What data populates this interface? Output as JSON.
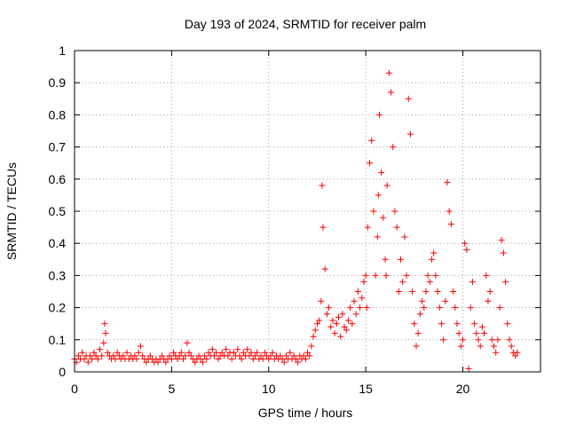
{
  "chart_data": {
    "type": "scatter",
    "title": "Day 193 of 2024, SRMTID for receiver palm",
    "xlabel": "GPS time / hours",
    "ylabel": "SRMTID / TECUs",
    "xlim": [
      0,
      24
    ],
    "ylim": [
      0,
      1
    ],
    "xticks": [
      0,
      5,
      10,
      15,
      20
    ],
    "xtick_labels": [
      "0",
      "5",
      "10",
      "15",
      "20"
    ],
    "yticks": [
      0,
      0.1,
      0.2,
      0.3,
      0.4,
      0.5,
      0.6,
      0.7,
      0.8,
      0.9,
      1
    ],
    "ytick_labels": [
      "0",
      "0.1",
      "0.2",
      "0.3",
      "0.4",
      "0.5",
      "0.6",
      "0.7",
      "0.8",
      "0.9",
      "1"
    ],
    "grid": true,
    "marker": "+",
    "marker_color": "#ff0000",
    "series": [
      {
        "name": "SRMTID",
        "x": [
          0.0,
          0.1,
          0.2,
          0.3,
          0.4,
          0.5,
          0.6,
          0.7,
          0.8,
          0.9,
          1.0,
          1.1,
          1.2,
          1.3,
          1.4,
          1.5,
          1.55,
          1.6,
          1.7,
          1.8,
          1.9,
          2.0,
          2.1,
          2.2,
          2.3,
          2.4,
          2.5,
          2.6,
          2.7,
          2.8,
          2.9,
          3.0,
          3.1,
          3.2,
          3.3,
          3.4,
          3.5,
          3.6,
          3.7,
          3.8,
          3.9,
          4.0,
          4.1,
          4.2,
          4.3,
          4.4,
          4.5,
          4.6,
          4.7,
          4.8,
          4.9,
          5.0,
          5.1,
          5.2,
          5.3,
          5.4,
          5.5,
          5.6,
          5.7,
          5.8,
          5.9,
          6.0,
          6.1,
          6.2,
          6.3,
          6.4,
          6.5,
          6.6,
          6.7,
          6.8,
          6.9,
          7.0,
          7.1,
          7.2,
          7.3,
          7.4,
          7.5,
          7.6,
          7.7,
          7.8,
          7.9,
          8.0,
          8.1,
          8.2,
          8.3,
          8.4,
          8.5,
          8.6,
          8.7,
          8.8,
          8.9,
          9.0,
          9.1,
          9.2,
          9.3,
          9.4,
          9.5,
          9.6,
          9.7,
          9.8,
          9.9,
          10.0,
          10.1,
          10.2,
          10.3,
          10.4,
          10.5,
          10.6,
          10.7,
          10.8,
          10.9,
          11.0,
          11.1,
          11.2,
          11.3,
          11.4,
          11.5,
          11.6,
          11.7,
          11.8,
          11.9,
          12.0,
          12.1,
          12.2,
          12.3,
          12.4,
          12.5,
          12.6,
          12.7,
          12.75,
          12.8,
          12.9,
          13.0,
          13.1,
          13.2,
          13.3,
          13.4,
          13.5,
          13.6,
          13.7,
          13.8,
          13.9,
          14.0,
          14.1,
          14.2,
          14.3,
          14.4,
          14.5,
          14.6,
          14.7,
          14.8,
          14.9,
          15.0,
          15.05,
          15.1,
          15.2,
          15.3,
          15.4,
          15.5,
          15.6,
          15.65,
          15.7,
          15.8,
          15.9,
          16.0,
          16.05,
          16.1,
          16.2,
          16.3,
          16.4,
          16.5,
          16.6,
          16.7,
          16.8,
          16.9,
          17.0,
          17.1,
          17.2,
          17.3,
          17.4,
          17.5,
          17.6,
          17.7,
          17.8,
          17.9,
          18.0,
          18.1,
          18.2,
          18.3,
          18.4,
          18.5,
          18.6,
          18.7,
          18.8,
          18.9,
          19.0,
          19.1,
          19.2,
          19.3,
          19.4,
          19.5,
          19.6,
          19.7,
          19.8,
          19.9,
          20.0,
          20.1,
          20.2,
          20.3,
          20.4,
          20.5,
          20.6,
          20.7,
          20.8,
          20.9,
          21.0,
          21.1,
          21.2,
          21.3,
          21.4,
          21.5,
          21.6,
          21.7,
          21.8,
          21.9,
          22.0,
          22.1,
          22.2,
          22.3,
          22.4,
          22.5,
          22.6,
          22.7,
          22.8
        ],
        "y": [
          0.04,
          0.03,
          0.05,
          0.04,
          0.06,
          0.04,
          0.05,
          0.03,
          0.05,
          0.04,
          0.06,
          0.05,
          0.04,
          0.07,
          0.05,
          0.09,
          0.15,
          0.12,
          0.06,
          0.05,
          0.04,
          0.05,
          0.04,
          0.06,
          0.05,
          0.04,
          0.05,
          0.04,
          0.06,
          0.04,
          0.05,
          0.04,
          0.05,
          0.04,
          0.06,
          0.08,
          0.05,
          0.04,
          0.03,
          0.04,
          0.05,
          0.04,
          0.03,
          0.04,
          0.03,
          0.04,
          0.05,
          0.04,
          0.03,
          0.04,
          0.05,
          0.04,
          0.06,
          0.05,
          0.04,
          0.05,
          0.06,
          0.04,
          0.05,
          0.09,
          0.06,
          0.05,
          0.04,
          0.03,
          0.04,
          0.05,
          0.04,
          0.03,
          0.05,
          0.04,
          0.06,
          0.05,
          0.07,
          0.05,
          0.06,
          0.04,
          0.05,
          0.06,
          0.05,
          0.07,
          0.05,
          0.06,
          0.04,
          0.06,
          0.05,
          0.07,
          0.05,
          0.04,
          0.06,
          0.05,
          0.07,
          0.05,
          0.06,
          0.04,
          0.05,
          0.06,
          0.04,
          0.05,
          0.04,
          0.06,
          0.05,
          0.04,
          0.05,
          0.06,
          0.04,
          0.05,
          0.04,
          0.05,
          0.04,
          0.03,
          0.05,
          0.04,
          0.06,
          0.04,
          0.05,
          0.04,
          0.03,
          0.05,
          0.04,
          0.05,
          0.04,
          0.06,
          0.05,
          0.08,
          0.11,
          0.13,
          0.15,
          0.16,
          0.22,
          0.58,
          0.45,
          0.32,
          0.18,
          0.2,
          0.14,
          0.16,
          0.12,
          0.15,
          0.17,
          0.11,
          0.18,
          0.14,
          0.13,
          0.16,
          0.2,
          0.15,
          0.22,
          0.18,
          0.25,
          0.2,
          0.23,
          0.28,
          0.3,
          0.2,
          0.45,
          0.65,
          0.72,
          0.5,
          0.3,
          0.42,
          0.55,
          0.8,
          0.62,
          0.48,
          0.35,
          0.3,
          0.58,
          0.93,
          0.87,
          0.7,
          0.5,
          0.45,
          0.25,
          0.35,
          0.28,
          0.42,
          0.3,
          0.85,
          0.74,
          0.25,
          0.15,
          0.08,
          0.12,
          0.18,
          0.22,
          0.2,
          0.25,
          0.3,
          0.28,
          0.35,
          0.37,
          0.3,
          0.25,
          0.2,
          0.15,
          0.1,
          0.22,
          0.59,
          0.5,
          0.46,
          0.25,
          0.2,
          0.15,
          0.12,
          0.08,
          0.1,
          0.4,
          0.38,
          0.01,
          0.2,
          0.28,
          0.15,
          0.12,
          0.1,
          0.08,
          0.14,
          0.12,
          0.3,
          0.22,
          0.25,
          0.1,
          0.08,
          0.06,
          0.1,
          0.2,
          0.41,
          0.37,
          0.28,
          0.15,
          0.1,
          0.08,
          0.06,
          0.05,
          0.06
        ]
      }
    ]
  }
}
